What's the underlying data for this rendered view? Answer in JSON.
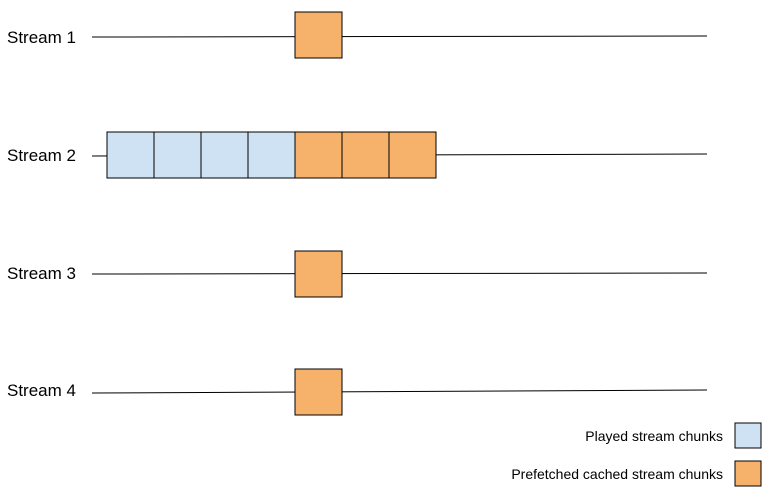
{
  "colors": {
    "played": "#cfe2f3",
    "prefetched": "#f6b26b",
    "stroke": "#000000",
    "line": "#000000"
  },
  "streams": [
    {
      "label": "Stream 1",
      "chunks": [
        "prefetched"
      ]
    },
    {
      "label": "Stream 2",
      "chunks": [
        "played",
        "played",
        "played",
        "played",
        "prefetched",
        "prefetched",
        "prefetched"
      ]
    },
    {
      "label": "Stream 3",
      "chunks": [
        "prefetched"
      ]
    },
    {
      "label": "Stream 4",
      "chunks": [
        "prefetched"
      ]
    }
  ],
  "legend": [
    {
      "key": "played",
      "label": "Played stream chunks"
    },
    {
      "key": "prefetched",
      "label": "Prefetched cached stream chunks"
    }
  ]
}
